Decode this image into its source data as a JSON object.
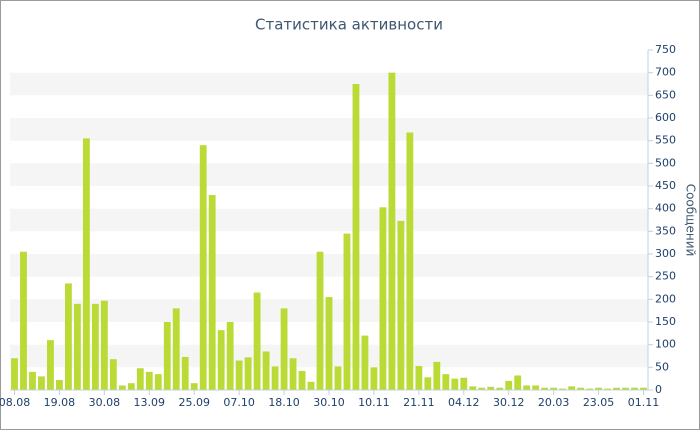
{
  "chart_data": {
    "type": "bar",
    "title": "Статистика активности",
    "y_label": "Сообщений",
    "categories": [
      "08.08",
      null,
      null,
      null,
      null,
      "19.08",
      null,
      null,
      null,
      null,
      "30.08",
      null,
      null,
      null,
      null,
      "13.09",
      null,
      null,
      null,
      null,
      "25.09",
      null,
      null,
      null,
      null,
      "07.10",
      null,
      null,
      null,
      null,
      "18.10",
      null,
      null,
      null,
      null,
      "30.10",
      null,
      null,
      null,
      null,
      "10.11",
      null,
      null,
      null,
      null,
      "21.11",
      null,
      null,
      null,
      null,
      "04.12",
      null,
      null,
      null,
      null,
      "30.12",
      null,
      null,
      null,
      null,
      "20.03",
      null,
      null,
      null,
      null,
      "23.05",
      null,
      null,
      null,
      null,
      "01.11"
    ],
    "values": [
      70,
      305,
      40,
      30,
      110,
      22,
      235,
      190,
      555,
      190,
      197,
      68,
      10,
      15,
      48,
      40,
      35,
      150,
      180,
      73,
      15,
      540,
      430,
      132,
      150,
      65,
      72,
      215,
      85,
      52,
      180,
      70,
      42,
      18,
      305,
      205,
      52,
      345,
      675,
      120,
      50,
      403,
      700,
      373,
      568,
      53,
      28,
      62,
      35,
      25,
      27,
      8,
      5,
      7,
      5,
      20,
      32,
      10,
      10,
      5,
      5,
      3,
      8,
      5,
      3,
      5,
      3,
      5,
      5,
      5,
      5
    ],
    "color": "#bada35",
    "ylim": [
      0,
      750
    ],
    "yticks": [
      0,
      50,
      100,
      150,
      200,
      250,
      300,
      350,
      400,
      450,
      500,
      550,
      600,
      650,
      700,
      750
    ],
    "grid": true
  }
}
